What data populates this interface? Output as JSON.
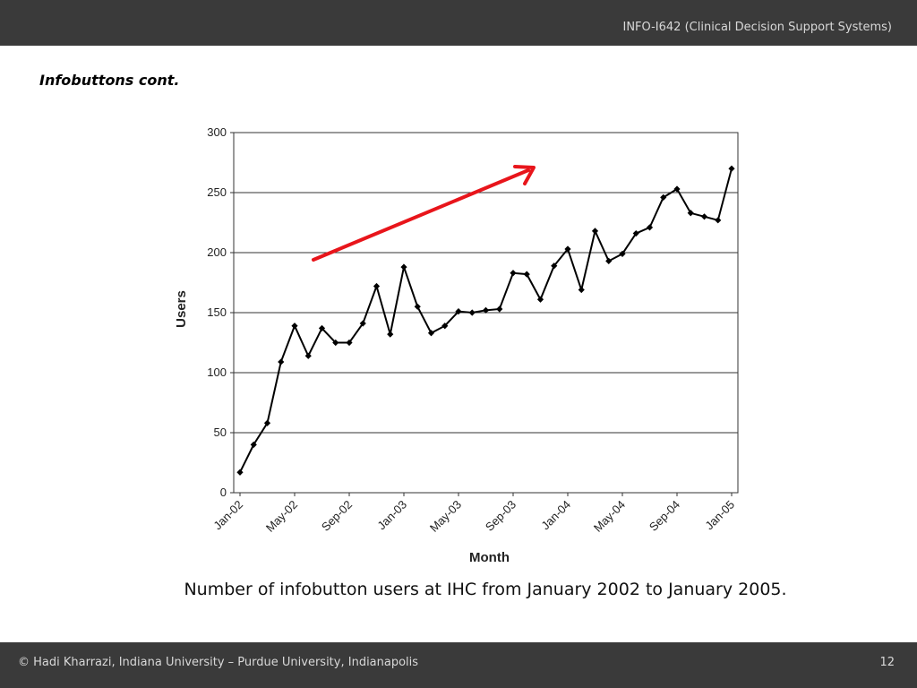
{
  "header": {
    "course": "INFO-I642 (Clinical Decision Support Systems)"
  },
  "slide": {
    "title": "Infobuttons cont.",
    "caption": "Number of infobutton users at IHC from January 2002 to January 2005."
  },
  "footer": {
    "copyright": "© Hadi Kharrazi, Indiana University – Purdue University, Indianapolis",
    "page_number": "12"
  },
  "chart_data": {
    "type": "line",
    "xlabel": "Month",
    "ylabel": "Users",
    "ylim": [
      0,
      300
    ],
    "yticks": [
      0,
      50,
      100,
      150,
      200,
      250,
      300
    ],
    "xtick_labels": [
      "Jan-02",
      "May-02",
      "Sep-02",
      "Jan-03",
      "May-03",
      "Sep-03",
      "Jan-04",
      "May-04",
      "Sep-04",
      "Jan-05"
    ],
    "grid": "horizontal",
    "series": [
      {
        "color": "#000000",
        "marker": "diamond",
        "x": [
          "Jan-02",
          "Feb-02",
          "Mar-02",
          "Apr-02",
          "May-02",
          "Jun-02",
          "Jul-02",
          "Aug-02",
          "Sep-02",
          "Oct-02",
          "Nov-02",
          "Dec-02",
          "Jan-03",
          "Feb-03",
          "Mar-03",
          "Apr-03",
          "May-03",
          "Jun-03",
          "Jul-03",
          "Aug-03",
          "Sep-03",
          "Oct-03",
          "Nov-03",
          "Dec-03",
          "Jan-04",
          "Feb-04",
          "Mar-04",
          "Apr-04",
          "May-04",
          "Jun-04",
          "Jul-04",
          "Aug-04",
          "Sep-04",
          "Oct-04",
          "Nov-04",
          "Dec-04",
          "Jan-05"
        ],
        "values": [
          17,
          40,
          58,
          109,
          139,
          114,
          137,
          125,
          125,
          141,
          172,
          132,
          188,
          155,
          133,
          139,
          151,
          150,
          152,
          153,
          183,
          182,
          161,
          189,
          203,
          169,
          218,
          193,
          199,
          216,
          221,
          246,
          253,
          233,
          230,
          227,
          270
        ]
      }
    ],
    "annotation": {
      "type": "arrow",
      "color": "#e8151b",
      "meaning": "upward trend"
    }
  }
}
